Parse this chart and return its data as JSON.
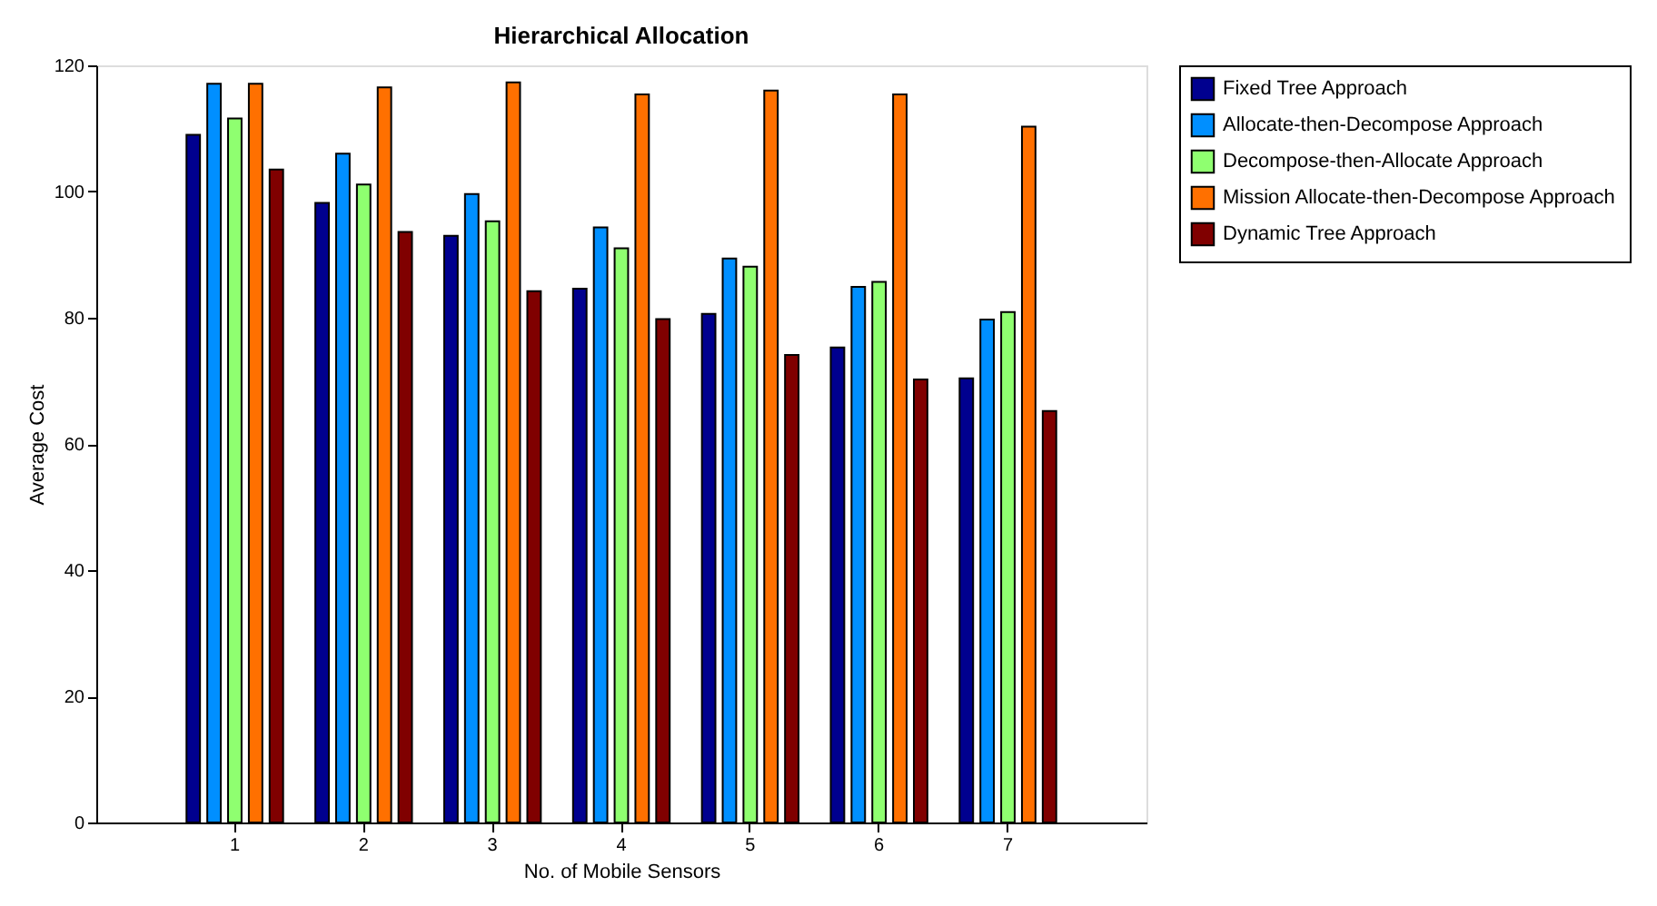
{
  "chart_data": {
    "type": "bar",
    "title": "Hierarchical Allocation",
    "xlabel": "No. of Mobile Sensors",
    "ylabel": "Average Cost",
    "categories": [
      "1",
      "2",
      "3",
      "4",
      "5",
      "6",
      "7"
    ],
    "series": [
      {
        "name": "Fixed Tree Approach",
        "color": "#00008f",
        "values": [
          109.0,
          98.2,
          93.0,
          84.6,
          80.6,
          75.3,
          70.4
        ]
      },
      {
        "name": "Allocate-then-Decompose Approach",
        "color": "#008fff",
        "values": [
          117.1,
          106.0,
          99.6,
          94.3,
          89.4,
          84.9,
          79.7
        ]
      },
      {
        "name": "Decompose-then-Allocate Approach",
        "color": "#8fff70",
        "values": [
          111.6,
          101.1,
          95.3,
          91.0,
          88.1,
          85.7,
          80.9
        ]
      },
      {
        "name": "Mission Allocate-then-Decompose Approach",
        "color": "#ff7000",
        "values": [
          117.1,
          116.5,
          117.3,
          115.4,
          116.0,
          115.4,
          110.3
        ]
      },
      {
        "name": "Dynamic Tree Approach",
        "color": "#800000",
        "values": [
          103.5,
          93.6,
          84.2,
          79.8,
          74.1,
          70.2,
          65.2
        ]
      }
    ],
    "ylim": [
      0,
      120
    ],
    "yticks": [
      0,
      20,
      40,
      60,
      80,
      100,
      120
    ],
    "grid": false,
    "legend": "right"
  }
}
